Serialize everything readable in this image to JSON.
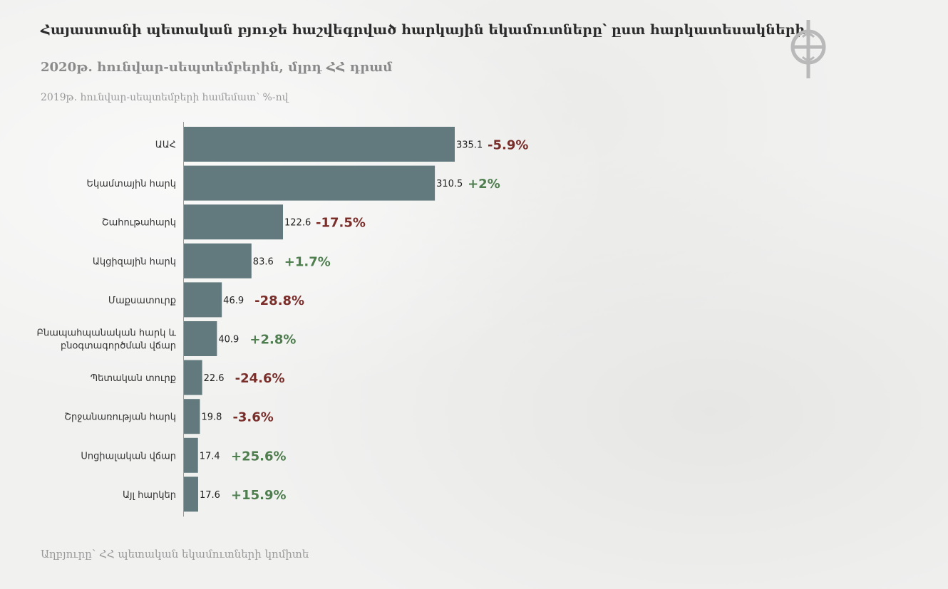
{
  "title": "Հայաստանի պետական բյուջե հաշվեգրված հարկային եկամուտները՝ ըստ հարկատեսակների",
  "subtitle": "2020թ. հունվար-սեպտեմբերին, մլրդ ՀՀ դրամ",
  "note": "2019թ. հունվար-սեպտեմբերի համեմատ՝ %-ով",
  "source": "Աղբյուրը՝ ՀՀ պետական եկամուտների կոմիտե",
  "logo_icon": "circle-cross-logo-icon",
  "colors": {
    "bar": "#627a7e",
    "negative": "#7a2e2a",
    "positive": "#4e7d4e",
    "axis": "#9a9a9a"
  },
  "chart_data": {
    "type": "bar",
    "orientation": "horizontal",
    "unit": "մլրդ ՀՀ դրամ",
    "categories": [
      [
        "ԱԱՀ"
      ],
      [
        "Եկամտային հարկ"
      ],
      [
        "Շահութահարկ"
      ],
      [
        "Ակցիզային հարկ"
      ],
      [
        "Մաքսատուրք"
      ],
      [
        "Բնապահպանական հարկ և",
        "բնօգտագործման վճար"
      ],
      [
        "Պետական տուրք"
      ],
      [
        "Շրջանառության հարկ"
      ],
      [
        "Սոցիալական վճար"
      ],
      [
        "Այլ հարկեր"
      ]
    ],
    "values": [
      335.1,
      310.5,
      122.6,
      83.6,
      46.9,
      40.9,
      22.6,
      19.8,
      17.4,
      17.6
    ],
    "value_labels": [
      "335.1",
      "310.5",
      "122.6",
      "83.6",
      "46.9",
      "40.9",
      "22.6",
      "19.8",
      "17.4",
      "17.6"
    ],
    "changes": [
      "-5.9%",
      "+2%",
      "-17.5%",
      "+1.7%",
      "-28.8%",
      "+2.8%",
      "-24.6%",
      "-3.6%",
      "+25.6%",
      "+15.9%"
    ],
    "change_values": [
      -5.9,
      2,
      -17.5,
      1.7,
      -28.8,
      2.8,
      -24.6,
      -3.6,
      25.6,
      15.9
    ],
    "xlim": [
      0,
      335.1
    ]
  }
}
